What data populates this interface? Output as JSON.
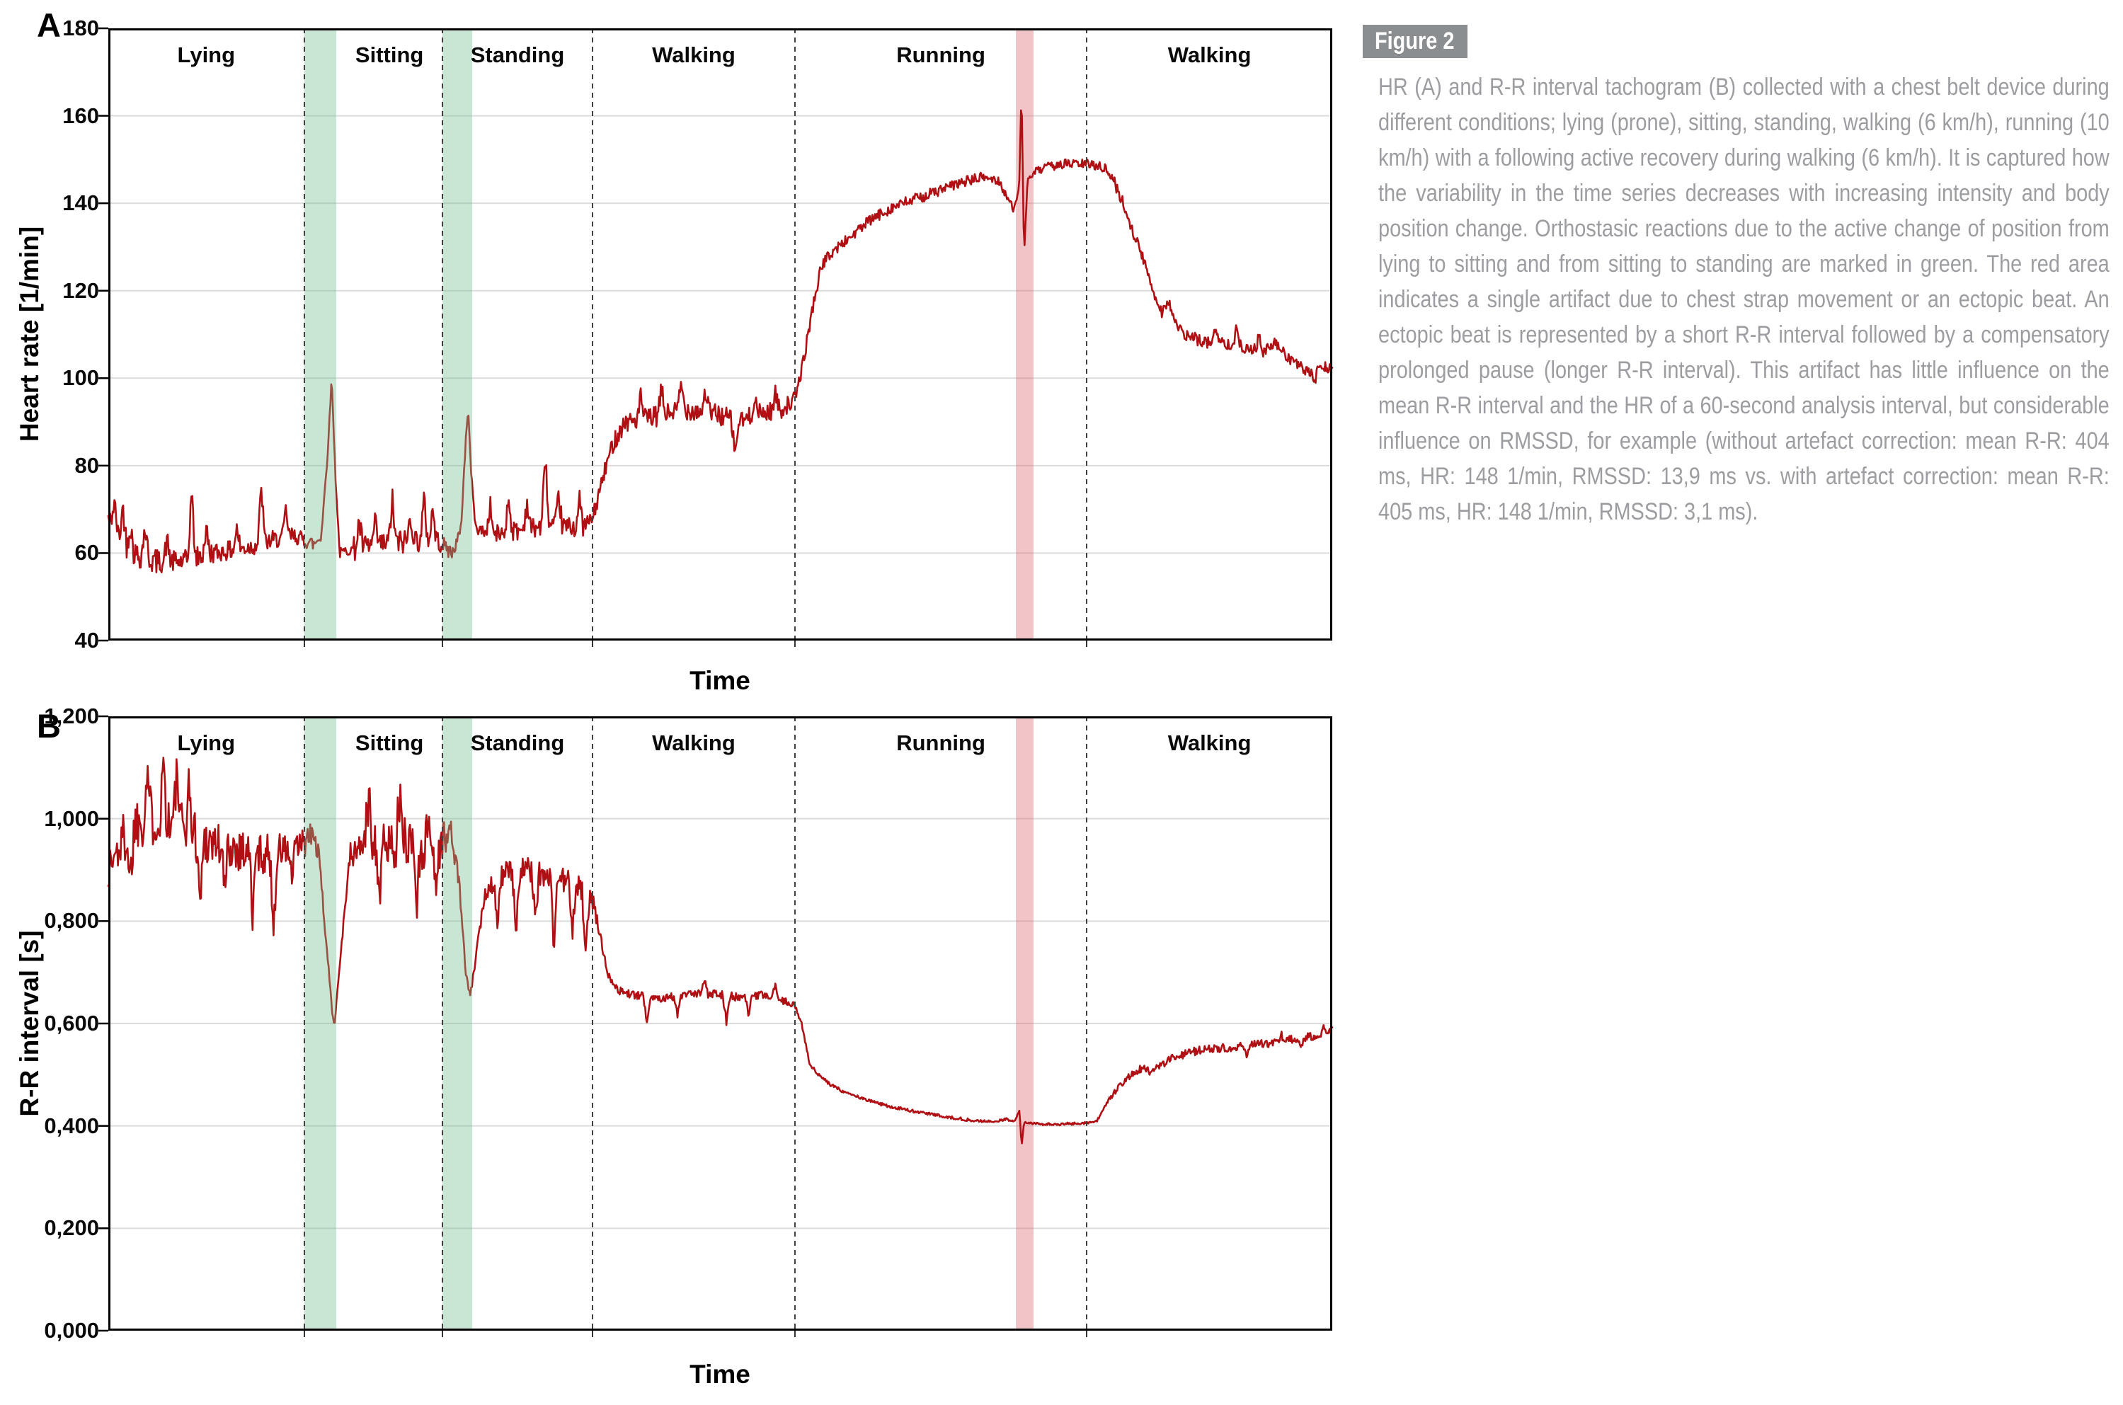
{
  "panel_a": {
    "label": "A"
  },
  "panel_b": {
    "label": "B"
  },
  "figure_box": {
    "label": "Figure 2",
    "bg": "#8b8e90",
    "text_color": "#ffffff"
  },
  "caption": {
    "color": "#9b9da0",
    "text": "HR (A) and R-R interval tachogram (B) collected with a chest belt device during different conditions; lying (prone), sitting, standing, walking (6 km/h), running (10 km/h) with a following active recovery during walking (6 km/h). It is captured how the variability in the time series decreases with increasing intensity and body position change. Orthostasic reactions due to the active change of position from lying to sitting and from sitting to standing are marked in green. The red area indicates a single artifact due to chest strap movement or an ectopic beat. An ectopic beat is represented by a short R-R interval followed by a compensatory prolonged pause (longer R-R interval). This artifact has little influence on the mean R-R interval and the HR of a 60-second analysis interval, but considerable influence on RMSSD, for example (without artefact correction: mean R-R: 404 ms, HR: 148 1/min, RMSSD: 13,9 ms vs. with artefact correction: mean R-R: 405 ms, HR: 148 1/min, RMSSD: 3,1 ms)."
  },
  "colors": {
    "line": "#b01014",
    "green_band": "rgba(112,189,141,0.38)",
    "red_band": "rgba(218,101,109,0.38)",
    "grid": "#dcdcdc",
    "axis": "#000000",
    "dashed": "#3f3f3f"
  },
  "chart_data": [
    {
      "type": "line",
      "panel": "A",
      "series_name": "Heart rate",
      "xlabel": "Time",
      "ylabel": "Heart rate [1/min]",
      "ylim": [
        40,
        180
      ],
      "grid": true,
      "legend": "none",
      "yticks": [
        {
          "v": 180,
          "label": "180"
        },
        {
          "v": 160,
          "label": "160"
        },
        {
          "v": 140,
          "label": "140"
        },
        {
          "v": 120,
          "label": "120"
        },
        {
          "v": 100,
          "label": "100"
        },
        {
          "v": 80,
          "label": "80"
        },
        {
          "v": 60,
          "label": "60"
        },
        {
          "v": 40,
          "label": "40"
        }
      ],
      "activity_labels": [
        "Lying",
        "Sitting",
        "Standing",
        "Walking",
        "Running",
        "Walking"
      ],
      "activity_label_centers_t": [
        0.08,
        0.2297,
        0.3343,
        0.4783,
        0.6802,
        0.8997
      ],
      "dashed_lines_t": [
        0.1602,
        0.273,
        0.3956,
        0.561,
        0.7993
      ],
      "green_bands_t": [
        [
          0.1602,
          0.1863
        ],
        [
          0.273,
          0.2973
        ]
      ],
      "red_bands_t": [
        [
          0.7415,
          0.7559
        ]
      ],
      "noise_seed": 42,
      "anchors": [
        [
          0.0,
          68,
          2.5
        ],
        [
          0.008,
          64,
          3
        ],
        [
          0.02,
          60,
          3
        ],
        [
          0.04,
          58,
          2.5
        ],
        [
          0.06,
          58,
          2.5
        ],
        [
          0.085,
          60,
          2.2
        ],
        [
          0.11,
          61,
          2.2
        ],
        [
          0.135,
          63,
          2
        ],
        [
          0.152,
          64,
          1.8
        ],
        [
          0.16,
          63,
          1.8
        ],
        [
          0.168,
          62,
          1.5
        ],
        [
          0.174,
          64,
          1
        ],
        [
          0.179,
          82,
          0.6
        ],
        [
          0.1825,
          100,
          0.4
        ],
        [
          0.1855,
          78,
          0.8
        ],
        [
          0.189,
          60,
          1.2
        ],
        [
          0.2,
          61,
          2.8
        ],
        [
          0.225,
          62,
          3
        ],
        [
          0.25,
          63,
          2.8
        ],
        [
          0.268,
          63,
          2.2
        ],
        [
          0.273,
          62,
          1.8
        ],
        [
          0.281,
          60,
          1.5
        ],
        [
          0.288,
          65,
          1
        ],
        [
          0.2925,
          88,
          0.5
        ],
        [
          0.294,
          93,
          0.4
        ],
        [
          0.2965,
          78,
          0.8
        ],
        [
          0.3,
          66,
          1.5
        ],
        [
          0.312,
          64,
          2.2
        ],
        [
          0.33,
          65,
          2.4
        ],
        [
          0.35,
          66,
          2.4
        ],
        [
          0.37,
          66,
          2.4
        ],
        [
          0.388,
          66,
          2
        ],
        [
          0.396,
          68,
          2
        ],
        [
          0.403,
          76,
          2
        ],
        [
          0.412,
          85,
          2.2
        ],
        [
          0.422,
          90,
          2.4
        ],
        [
          0.445,
          91,
          2.4
        ],
        [
          0.47,
          93,
          2.4
        ],
        [
          0.495,
          92,
          2.4
        ],
        [
          0.515,
          90,
          2.4
        ],
        [
          0.535,
          92,
          2.2
        ],
        [
          0.55,
          93,
          2
        ],
        [
          0.561,
          95,
          1.5
        ],
        [
          0.568,
          104,
          1.5
        ],
        [
          0.576,
          117,
          1.4
        ],
        [
          0.583,
          126,
          1.3
        ],
        [
          0.592,
          129,
          1.3
        ],
        [
          0.605,
          132,
          1.3
        ],
        [
          0.622,
          136,
          1.3
        ],
        [
          0.64,
          139,
          1.3
        ],
        [
          0.66,
          141,
          1.3
        ],
        [
          0.68,
          143,
          1.2
        ],
        [
          0.7,
          145,
          1.2
        ],
        [
          0.716,
          146,
          1.1
        ],
        [
          0.728,
          145,
          1
        ],
        [
          0.735,
          141,
          0.8
        ],
        [
          0.74,
          138.5,
          0.6
        ],
        [
          0.7442,
          144,
          0.4
        ],
        [
          0.7461,
          166,
          0.3
        ],
        [
          0.7482,
          128,
          0.3
        ],
        [
          0.751,
          145,
          0.6
        ],
        [
          0.756,
          147,
          0.9
        ],
        [
          0.765,
          148,
          1.1
        ],
        [
          0.778,
          149,
          1.1
        ],
        [
          0.79,
          149,
          1.1
        ],
        [
          0.799,
          149,
          1.1
        ],
        [
          0.812,
          148.5,
          1.3
        ],
        [
          0.82,
          146,
          1.4
        ],
        [
          0.829,
          140,
          1.4
        ],
        [
          0.838,
          133,
          1.4
        ],
        [
          0.847,
          126,
          1.4
        ],
        [
          0.855,
          119,
          1.4
        ],
        [
          0.861,
          115,
          1.3
        ],
        [
          0.866,
          118,
          1.3
        ],
        [
          0.871,
          113,
          1.3
        ],
        [
          0.878,
          110,
          1.4
        ],
        [
          0.888,
          109,
          1.4
        ],
        [
          0.9,
          108,
          1.4
        ],
        [
          0.915,
          108,
          1.4
        ],
        [
          0.93,
          107,
          1.4
        ],
        [
          0.944,
          106,
          1.3
        ],
        [
          0.953,
          108,
          1.2
        ],
        [
          0.963,
          105,
          1.3
        ],
        [
          0.972,
          103,
          1.3
        ],
        [
          0.981,
          101,
          1.2
        ],
        [
          0.989,
          103,
          1.2
        ],
        [
          1.0,
          102,
          1
        ]
      ],
      "spikes": [
        [
          0.005,
          6
        ],
        [
          0.012,
          8
        ],
        [
          0.018,
          6
        ],
        [
          0.03,
          7
        ],
        [
          0.048,
          5
        ],
        [
          0.068,
          16
        ],
        [
          0.08,
          6
        ],
        [
          0.105,
          5
        ],
        [
          0.125,
          13
        ],
        [
          0.145,
          6
        ],
        [
          0.205,
          6
        ],
        [
          0.218,
          5
        ],
        [
          0.232,
          10
        ],
        [
          0.247,
          6
        ],
        [
          0.258,
          9
        ],
        [
          0.265,
          7
        ],
        [
          0.312,
          7
        ],
        [
          0.327,
          8
        ],
        [
          0.342,
          6
        ],
        [
          0.357,
          17
        ],
        [
          0.368,
          7
        ],
        [
          0.385,
          6
        ],
        [
          0.435,
          5
        ],
        [
          0.452,
          6
        ],
        [
          0.468,
          6
        ],
        [
          0.488,
          5
        ],
        [
          0.512,
          -8
        ],
        [
          0.528,
          5
        ],
        [
          0.545,
          4
        ],
        [
          0.905,
          4
        ],
        [
          0.922,
          4
        ],
        [
          0.94,
          3
        ],
        [
          0.986,
          -3
        ]
      ]
    },
    {
      "type": "line",
      "panel": "B",
      "series_name": "R-R interval",
      "xlabel": "Time",
      "ylabel": "R-R interval [s]",
      "ylim": [
        0,
        1.2
      ],
      "grid": true,
      "legend": "none",
      "yticks": [
        {
          "v": 1.2,
          "label": "1,200"
        },
        {
          "v": 1.0,
          "label": "1,000"
        },
        {
          "v": 0.8,
          "label": "0,800"
        },
        {
          "v": 0.6,
          "label": "0,600"
        },
        {
          "v": 0.4,
          "label": "0,400"
        },
        {
          "v": 0.2,
          "label": "0,200"
        },
        {
          "v": 0.0,
          "label": "0,000"
        }
      ],
      "activity_labels": [
        "Lying",
        "Sitting",
        "Standing",
        "Walking",
        "Running",
        "Walking"
      ],
      "activity_label_centers_t": [
        0.08,
        0.2297,
        0.3343,
        0.4783,
        0.6802,
        0.8997
      ],
      "dashed_lines_t": [
        0.1602,
        0.273,
        0.3956,
        0.561,
        0.7993
      ],
      "green_bands_t": [
        [
          0.1602,
          0.1863
        ],
        [
          0.273,
          0.2973
        ]
      ],
      "red_bands_t": [
        [
          0.7415,
          0.7559
        ]
      ],
      "noise_seed": 1337,
      "anchors": [
        [
          0.0,
          0.9,
          0.05
        ],
        [
          0.012,
          0.96,
          0.055
        ],
        [
          0.025,
          1.0,
          0.055
        ],
        [
          0.04,
          1.0,
          0.055
        ],
        [
          0.055,
          0.99,
          0.05
        ],
        [
          0.07,
          0.97,
          0.05
        ],
        [
          0.09,
          0.95,
          0.045
        ],
        [
          0.11,
          0.94,
          0.04
        ],
        [
          0.13,
          0.93,
          0.038
        ],
        [
          0.148,
          0.94,
          0.032
        ],
        [
          0.16,
          0.95,
          0.028
        ],
        [
          0.167,
          0.97,
          0.02
        ],
        [
          0.172,
          0.93,
          0.012
        ],
        [
          0.178,
          0.76,
          0.008
        ],
        [
          0.183,
          0.62,
          0.005
        ],
        [
          0.1848,
          0.6,
          0.005
        ],
        [
          0.19,
          0.74,
          0.01
        ],
        [
          0.197,
          0.92,
          0.03
        ],
        [
          0.21,
          0.96,
          0.05
        ],
        [
          0.228,
          0.95,
          0.05
        ],
        [
          0.246,
          0.96,
          0.048
        ],
        [
          0.262,
          0.94,
          0.045
        ],
        [
          0.273,
          0.96,
          0.035
        ],
        [
          0.28,
          0.97,
          0.02
        ],
        [
          0.2865,
          0.88,
          0.012
        ],
        [
          0.292,
          0.7,
          0.008
        ],
        [
          0.2955,
          0.65,
          0.006
        ],
        [
          0.301,
          0.74,
          0.012
        ],
        [
          0.308,
          0.86,
          0.02
        ],
        [
          0.32,
          0.89,
          0.024
        ],
        [
          0.338,
          0.9,
          0.026
        ],
        [
          0.356,
          0.89,
          0.026
        ],
        [
          0.374,
          0.88,
          0.024
        ],
        [
          0.388,
          0.86,
          0.02
        ],
        [
          0.396,
          0.84,
          0.014
        ],
        [
          0.401,
          0.78,
          0.01
        ],
        [
          0.408,
          0.7,
          0.008
        ],
        [
          0.416,
          0.665,
          0.008
        ],
        [
          0.43,
          0.655,
          0.008
        ],
        [
          0.45,
          0.65,
          0.008
        ],
        [
          0.472,
          0.655,
          0.009
        ],
        [
          0.495,
          0.66,
          0.009
        ],
        [
          0.515,
          0.65,
          0.008
        ],
        [
          0.535,
          0.655,
          0.009
        ],
        [
          0.552,
          0.645,
          0.006
        ],
        [
          0.561,
          0.635,
          0.005
        ],
        [
          0.5665,
          0.6,
          0.004
        ],
        [
          0.573,
          0.52,
          0.004
        ],
        [
          0.58,
          0.5,
          0.0035
        ],
        [
          0.59,
          0.48,
          0.0035
        ],
        [
          0.603,
          0.465,
          0.003
        ],
        [
          0.62,
          0.45,
          0.003
        ],
        [
          0.64,
          0.437,
          0.003
        ],
        [
          0.662,
          0.427,
          0.0028
        ],
        [
          0.684,
          0.418,
          0.0028
        ],
        [
          0.705,
          0.411,
          0.0025
        ],
        [
          0.722,
          0.408,
          0.0025
        ],
        [
          0.734,
          0.413,
          0.002
        ],
        [
          0.74,
          0.408,
          0.0018
        ],
        [
          0.7445,
          0.43,
          0.001
        ],
        [
          0.7462,
          0.36,
          0.001
        ],
        [
          0.7482,
          0.408,
          0.0018
        ],
        [
          0.756,
          0.404,
          0.0025
        ],
        [
          0.77,
          0.403,
          0.0025
        ],
        [
          0.785,
          0.404,
          0.0025
        ],
        [
          0.799,
          0.406,
          0.003
        ],
        [
          0.808,
          0.41,
          0.004
        ],
        [
          0.8165,
          0.445,
          0.006
        ],
        [
          0.826,
          0.48,
          0.007
        ],
        [
          0.836,
          0.5,
          0.008
        ],
        [
          0.845,
          0.513,
          0.008
        ],
        [
          0.8525,
          0.502,
          0.008
        ],
        [
          0.86,
          0.52,
          0.008
        ],
        [
          0.87,
          0.532,
          0.008
        ],
        [
          0.882,
          0.543,
          0.008
        ],
        [
          0.897,
          0.55,
          0.008
        ],
        [
          0.915,
          0.553,
          0.008
        ],
        [
          0.933,
          0.558,
          0.008
        ],
        [
          0.95,
          0.562,
          0.008
        ],
        [
          0.965,
          0.568,
          0.008
        ],
        [
          0.98,
          0.574,
          0.008
        ],
        [
          0.991,
          0.578,
          0.007
        ],
        [
          1.0,
          0.588,
          0.006
        ]
      ],
      "spikes": [
        [
          0.018,
          -0.1
        ],
        [
          0.032,
          0.1
        ],
        [
          0.045,
          0.12
        ],
        [
          0.056,
          0.1
        ],
        [
          0.066,
          0.09
        ],
        [
          0.075,
          -0.14
        ],
        [
          0.095,
          -0.09
        ],
        [
          0.118,
          -0.13
        ],
        [
          0.135,
          -0.15
        ],
        [
          0.15,
          -0.06
        ],
        [
          0.213,
          0.09
        ],
        [
          0.222,
          -0.11
        ],
        [
          0.238,
          0.08
        ],
        [
          0.252,
          -0.12
        ],
        [
          0.262,
          0.07
        ],
        [
          0.268,
          -0.09
        ],
        [
          0.318,
          -0.09
        ],
        [
          0.333,
          -0.12
        ],
        [
          0.349,
          -0.08
        ],
        [
          0.364,
          -0.13
        ],
        [
          0.379,
          -0.1
        ],
        [
          0.39,
          -0.13
        ],
        [
          0.44,
          -0.045
        ],
        [
          0.465,
          -0.04
        ],
        [
          0.487,
          0.025
        ],
        [
          0.505,
          -0.05
        ],
        [
          0.523,
          -0.035
        ],
        [
          0.545,
          0.02
        ],
        [
          0.93,
          -0.02
        ],
        [
          0.958,
          0.014
        ],
        [
          0.975,
          -0.014
        ],
        [
          0.993,
          0.015
        ]
      ]
    }
  ]
}
